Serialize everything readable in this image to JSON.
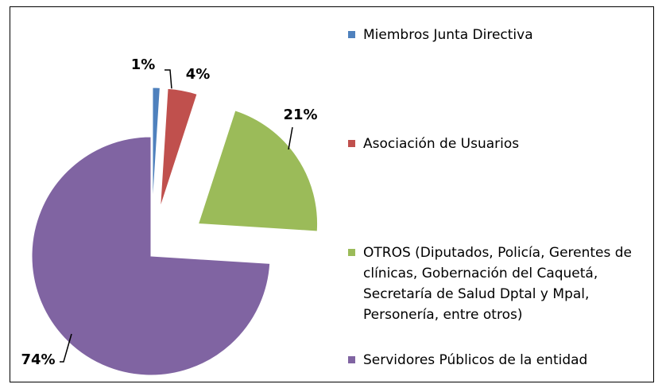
{
  "chart_data": {
    "type": "pie",
    "categories": [
      "Miembros Junta Directiva",
      "Asociación de Usuarios",
      "OTROS (Diputados, Policía, Gerentes de clínicas, Gobernación del Caquetá, Secretaría de Salud Dptal y Mpal,  Personería, entre otros)",
      "Servidores Públicos de la entidad"
    ],
    "values": [
      1,
      4,
      21,
      74
    ],
    "value_labels": [
      "1%",
      "4%",
      "21%",
      "74%"
    ],
    "colors": [
      "#4f81bd",
      "#c0504d",
      "#9bbb59",
      "#8064a2"
    ],
    "legend": "right"
  }
}
